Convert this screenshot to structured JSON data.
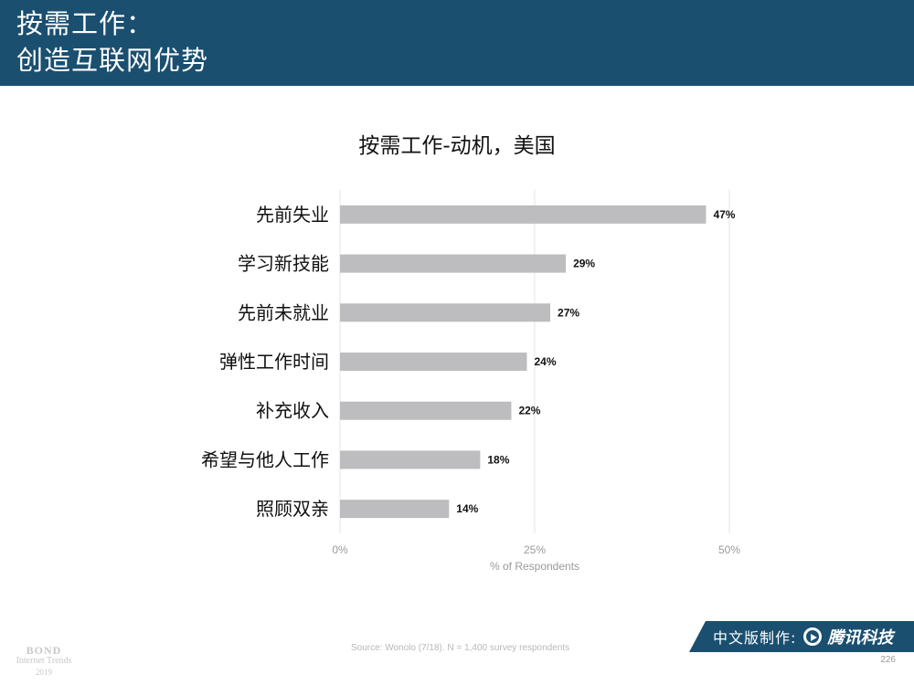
{
  "header": {
    "title_line1": "按需工作：",
    "title_line2": "创造互联网优势"
  },
  "chart_data": {
    "type": "bar",
    "orientation": "horizontal",
    "title": "按需工作-动机，美国",
    "categories": [
      "先前失业",
      "学习新技能",
      "先前未就业",
      "弹性工作时间",
      "补充收入",
      "希望与他人工作",
      "照顾双亲"
    ],
    "values": [
      47,
      29,
      27,
      24,
      22,
      18,
      14
    ],
    "data_labels": [
      "47%",
      "29%",
      "27%",
      "24%",
      "22%",
      "18%",
      "14%"
    ],
    "xlim": [
      0,
      50
    ],
    "xticks": [
      0,
      25,
      50
    ],
    "xtick_labels": [
      "0%",
      "25%",
      "50%"
    ],
    "xlabel": "% of Respondents",
    "ylabel": "",
    "grid": true,
    "bar_color": "#bdbcbe",
    "grid_color": "#e4e4e4"
  },
  "footer": {
    "source": "Source: Wonolo (7/18). N = 1,400 survey respondents",
    "bond_line1": "BOND",
    "bond_line2": "Internet Trends",
    "bond_line3": "2019",
    "credit": "中文版制作:",
    "brand": "腾讯科技",
    "page_number": "226"
  },
  "colors": {
    "header_bg": "#1a4f70",
    "banner_bg": "#1a4f70"
  },
  "icons": {
    "brand_logo": "tencent-logo-icon"
  }
}
